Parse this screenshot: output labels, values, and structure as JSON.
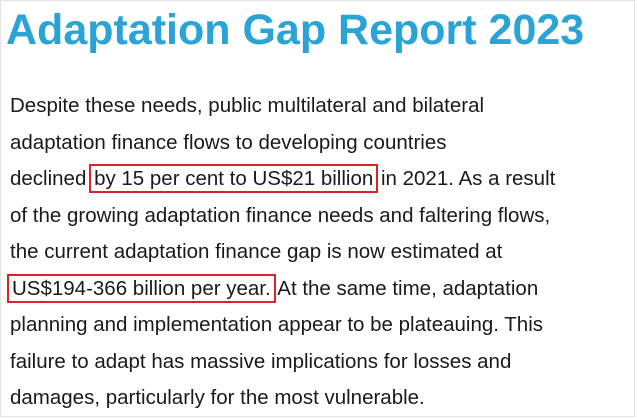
{
  "title": "Adaptation Gap Report 2023",
  "paragraph": {
    "line1": "Despite these needs, public multilateral and bilateral",
    "line2": "adaptation finance flows to developing countries",
    "line3_before": "declined ",
    "line3_highlight": "by 15 per cent to US$21 billion",
    "line3_after": " in 2021. As a result",
    "line4": "of the growing adaptation finance needs and faltering flows,",
    "line5": "the current adaptation finance gap is now estimated at",
    "line6_highlight": "US$194-366 billion per year.",
    "line6_after": " At the same time, adaptation",
    "line7": "planning and implementation appear to be plateauing. This",
    "line8": "failure to adapt has massive implications for losses and",
    "line9": "damages, particularly for the most vulnerable."
  },
  "colors": {
    "title": "#2aa3d6",
    "text": "#1a1a1a",
    "highlight_box": "#d9222a"
  }
}
